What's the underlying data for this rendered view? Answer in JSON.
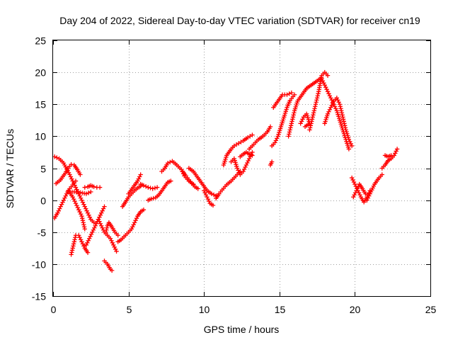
{
  "chart_data": {
    "type": "scatter",
    "title": "Day 204 of 2022, Sidereal Day-to-day VTEC variation (SDTVAR) for receiver cn19",
    "xlabel": "GPS time / hours",
    "ylabel": "SDTVAR / TECUs",
    "xlim": [
      0,
      25
    ],
    "ylim": [
      -15,
      25
    ],
    "x_ticks": [
      0,
      5,
      10,
      15,
      20,
      25
    ],
    "y_ticks": [
      -15,
      -10,
      -5,
      0,
      5,
      10,
      15,
      20,
      25
    ],
    "grid": true,
    "marker": "plus",
    "series": [
      {
        "name": "SDTVAR",
        "color": "#ff0000",
        "tracks": [
          [
            [
              0.1,
              6.8
            ],
            [
              0.4,
              6.5
            ],
            [
              0.7,
              5.8
            ],
            [
              0.9,
              4.9
            ],
            [
              1.1,
              4.0
            ],
            [
              1.3,
              3.0
            ],
            [
              1.5,
              2.0
            ],
            [
              1.7,
              1.0
            ],
            [
              1.9,
              0.0
            ],
            [
              2.1,
              -1.0
            ],
            [
              2.3,
              -2.0
            ],
            [
              2.5,
              -3.0
            ],
            [
              2.7,
              -3.5
            ]
          ],
          [
            [
              0.2,
              2.6
            ],
            [
              0.5,
              3.2
            ],
            [
              0.8,
              4.2
            ],
            [
              1.0,
              5.0
            ],
            [
              1.2,
              5.6
            ],
            [
              1.4,
              5.5
            ],
            [
              1.6,
              4.8
            ],
            [
              1.8,
              4.0
            ]
          ],
          [
            [
              0.1,
              -2.8
            ],
            [
              0.3,
              -2.0
            ],
            [
              0.5,
              -1.0
            ],
            [
              0.7,
              0.0
            ],
            [
              0.9,
              1.0
            ],
            [
              1.1,
              1.8
            ],
            [
              1.3,
              2.4
            ],
            [
              1.5,
              3.0
            ]
          ],
          [
            [
              1.0,
              1.5
            ],
            [
              1.3,
              0.5
            ],
            [
              1.5,
              -0.5
            ],
            [
              1.7,
              -1.5
            ],
            [
              1.9,
              -2.5
            ],
            [
              2.0,
              -3.5
            ],
            [
              2.1,
              -4.5
            ]
          ],
          [
            [
              1.2,
              -8.5
            ],
            [
              1.3,
              -7.5
            ],
            [
              1.4,
              -6.5
            ],
            [
              1.5,
              -5.5
            ],
            [
              1.7,
              -5.5
            ],
            [
              1.9,
              -6.5
            ],
            [
              2.1,
              -7.5
            ],
            [
              2.3,
              -8.2
            ]
          ],
          [
            [
              1.0,
              1.3
            ],
            [
              1.4,
              1.3
            ],
            [
              1.8,
              1.2
            ],
            [
              2.2,
              1.0
            ],
            [
              2.5,
              1.3
            ]
          ],
          [
            [
              2.2,
              -7.0
            ],
            [
              2.4,
              -6.0
            ],
            [
              2.6,
              -5.0
            ],
            [
              2.8,
              -4.0
            ],
            [
              3.0,
              -3.0
            ],
            [
              3.2,
              -2.0
            ],
            [
              3.4,
              -1.0
            ]
          ],
          [
            [
              2.1,
              2.0
            ],
            [
              2.3,
              2.1
            ],
            [
              2.5,
              2.3
            ],
            [
              2.7,
              2.1
            ],
            [
              2.9,
              2.0
            ],
            [
              3.1,
              2.0
            ]
          ],
          [
            [
              3.0,
              -3.0
            ],
            [
              3.2,
              -4.0
            ],
            [
              3.4,
              -5.0
            ],
            [
              3.6,
              -5.5
            ],
            [
              3.8,
              -6.0
            ],
            [
              4.0,
              -7.0
            ],
            [
              4.2,
              -8.0
            ]
          ],
          [
            [
              3.5,
              -5.0
            ],
            [
              3.6,
              -4.0
            ],
            [
              3.7,
              -3.5
            ],
            [
              3.9,
              -4.2
            ],
            [
              4.1,
              -5.0
            ],
            [
              4.3,
              -5.5
            ]
          ],
          [
            [
              3.4,
              -9.5
            ],
            [
              3.6,
              -10.0
            ],
            [
              3.8,
              -10.8
            ],
            [
              3.9,
              -11.0
            ]
          ],
          [
            [
              4.3,
              -6.5
            ],
            [
              4.5,
              -6.2
            ],
            [
              4.8,
              -5.5
            ],
            [
              5.0,
              -5.0
            ],
            [
              5.2,
              -4.5
            ],
            [
              5.4,
              -3.5
            ],
            [
              5.6,
              -2.5
            ],
            [
              5.8,
              -1.8
            ],
            [
              6.0,
              -1.5
            ]
          ],
          [
            [
              4.6,
              -1.0
            ],
            [
              4.8,
              -0.3
            ],
            [
              5.0,
              0.5
            ],
            [
              5.2,
              1.0
            ],
            [
              5.4,
              1.5
            ],
            [
              5.6,
              1.9
            ],
            [
              5.8,
              2.2
            ]
          ],
          [
            [
              5.0,
              1.0
            ],
            [
              5.3,
              2.0
            ],
            [
              5.6,
              3.0
            ],
            [
              5.8,
              4.0
            ]
          ],
          [
            [
              5.8,
              2.5
            ],
            [
              6.0,
              2.3
            ],
            [
              6.3,
              2.0
            ],
            [
              6.6,
              1.8
            ],
            [
              6.9,
              2.0
            ]
          ],
          [
            [
              6.3,
              0.0
            ],
            [
              6.5,
              0.2
            ],
            [
              6.8,
              0.4
            ],
            [
              7.0,
              0.8
            ],
            [
              7.3,
              1.8
            ],
            [
              7.6,
              2.8
            ],
            [
              7.8,
              3.0
            ]
          ],
          [
            [
              7.2,
              4.5
            ],
            [
              7.4,
              5.0
            ],
            [
              7.6,
              5.8
            ],
            [
              7.9,
              6.1
            ],
            [
              8.2,
              5.5
            ],
            [
              8.5,
              4.8
            ],
            [
              8.7,
              3.8
            ],
            [
              9.0,
              3.0
            ],
            [
              9.3,
              2.5
            ]
          ],
          [
            [
              8.6,
              4.5
            ],
            [
              8.8,
              3.8
            ],
            [
              9.0,
              3.2
            ],
            [
              9.2,
              2.6
            ],
            [
              9.4,
              2.1
            ],
            [
              9.6,
              1.8
            ]
          ],
          [
            [
              9.0,
              5.0
            ],
            [
              9.3,
              4.5
            ],
            [
              9.6,
              3.5
            ],
            [
              9.9,
              2.5
            ],
            [
              10.2,
              1.5
            ],
            [
              10.5,
              1.0
            ],
            [
              10.8,
              0.7
            ]
          ],
          [
            [
              10.0,
              1.5
            ],
            [
              10.2,
              0.5
            ],
            [
              10.4,
              -0.5
            ],
            [
              10.6,
              -0.8
            ]
          ],
          [
            [
              10.8,
              0.3
            ],
            [
              11.0,
              1.0
            ],
            [
              11.2,
              1.6
            ],
            [
              11.5,
              2.4
            ],
            [
              11.8,
              3.0
            ],
            [
              12.0,
              3.5
            ],
            [
              12.2,
              4.0
            ],
            [
              12.4,
              4.5
            ]
          ],
          [
            [
              11.3,
              5.5
            ],
            [
              11.5,
              7.0
            ],
            [
              11.8,
              8.0
            ],
            [
              12.0,
              8.5
            ],
            [
              12.3,
              8.9
            ],
            [
              12.6,
              9.3
            ],
            [
              12.9,
              9.8
            ],
            [
              13.2,
              10.2
            ]
          ],
          [
            [
              11.8,
              6.0
            ],
            [
              12.0,
              6.5
            ],
            [
              12.2,
              5.0
            ],
            [
              12.4,
              4.0
            ],
            [
              12.6,
              4.5
            ],
            [
              12.8,
              5.5
            ],
            [
              13.0,
              6.5
            ],
            [
              13.2,
              7.5
            ]
          ],
          [
            [
              12.4,
              6.8
            ],
            [
              12.6,
              7.2
            ],
            [
              12.8,
              7.5
            ],
            [
              13.0,
              7.2
            ],
            [
              13.2,
              7.0
            ]
          ],
          [
            [
              13.0,
              8.0
            ],
            [
              13.2,
              8.5
            ],
            [
              13.4,
              9.0
            ],
            [
              13.6,
              9.5
            ],
            [
              13.8,
              9.8
            ],
            [
              14.0,
              10.2
            ],
            [
              14.2,
              10.7
            ],
            [
              14.4,
              11.5
            ]
          ],
          [
            [
              14.5,
              8.5
            ],
            [
              14.7,
              9.0
            ],
            [
              14.9,
              10.0
            ],
            [
              15.1,
              11.5
            ],
            [
              15.3,
              13.0
            ],
            [
              15.5,
              14.5
            ],
            [
              15.7,
              15.6
            ],
            [
              16.0,
              16.5
            ]
          ],
          [
            [
              14.6,
              14.5
            ],
            [
              14.9,
              15.5
            ],
            [
              15.2,
              16.5
            ],
            [
              15.5,
              16.5
            ],
            [
              15.8,
              16.8
            ]
          ],
          [
            [
              15.6,
              10.0
            ],
            [
              15.8,
              12.0
            ],
            [
              16.0,
              14.0
            ],
            [
              16.2,
              15.5
            ],
            [
              16.5,
              16.5
            ],
            [
              16.8,
              17.5
            ],
            [
              17.1,
              18.0
            ],
            [
              17.4,
              18.5
            ],
            [
              17.7,
              19.0
            ]
          ],
          [
            [
              16.4,
              12.0
            ],
            [
              16.6,
              13.0
            ],
            [
              16.8,
              13.5
            ],
            [
              17.0,
              12.0
            ],
            [
              16.7,
              11.5
            ]
          ],
          [
            [
              17.0,
              11.0
            ],
            [
              17.2,
              13.0
            ],
            [
              17.4,
              15.0
            ],
            [
              17.6,
              17.0
            ],
            [
              17.8,
              19.5
            ],
            [
              18.0,
              20.0
            ],
            [
              18.2,
              19.5
            ]
          ],
          [
            [
              17.8,
              19.0
            ],
            [
              18.0,
              18.0
            ],
            [
              18.2,
              17.0
            ],
            [
              18.4,
              16.0
            ],
            [
              18.6,
              15.0
            ],
            [
              18.8,
              14.0
            ],
            [
              19.0,
              12.5
            ],
            [
              19.2,
              11.0
            ],
            [
              19.4,
              9.5
            ],
            [
              19.6,
              8.0
            ]
          ],
          [
            [
              18.0,
              12.0
            ],
            [
              18.2,
              13.5
            ],
            [
              18.4,
              14.5
            ],
            [
              18.6,
              15.5
            ],
            [
              18.8,
              16.0
            ],
            [
              19.0,
              15.0
            ],
            [
              19.2,
              13.0
            ],
            [
              19.4,
              11.0
            ],
            [
              19.6,
              9.5
            ],
            [
              19.8,
              8.5
            ]
          ],
          [
            [
              14.4,
              5.5
            ],
            [
              14.5,
              6.0
            ]
          ],
          [
            [
              19.8,
              3.5
            ],
            [
              20.0,
              2.5
            ],
            [
              20.2,
              1.5
            ],
            [
              20.4,
              0.5
            ],
            [
              20.6,
              -0.3
            ],
            [
              20.8,
              0.5
            ],
            [
              21.0,
              1.5
            ]
          ],
          [
            [
              19.9,
              0.5
            ],
            [
              20.1,
              1.5
            ],
            [
              20.3,
              2.5
            ],
            [
              20.5,
              1.8
            ],
            [
              20.7,
              1.0
            ]
          ],
          [
            [
              20.8,
              0.0
            ],
            [
              21.0,
              1.0
            ],
            [
              21.3,
              2.5
            ],
            [
              21.6,
              3.5
            ],
            [
              21.8,
              4.0
            ]
          ],
          [
            [
              21.8,
              5.0
            ],
            [
              22.0,
              5.5
            ],
            [
              22.2,
              6.2
            ],
            [
              22.4,
              6.5
            ],
            [
              22.6,
              7.0
            ],
            [
              22.8,
              8.0
            ]
          ],
          [
            [
              22.0,
              7.0
            ],
            [
              22.2,
              6.8
            ],
            [
              22.4,
              7.0
            ]
          ]
        ]
      }
    ]
  }
}
